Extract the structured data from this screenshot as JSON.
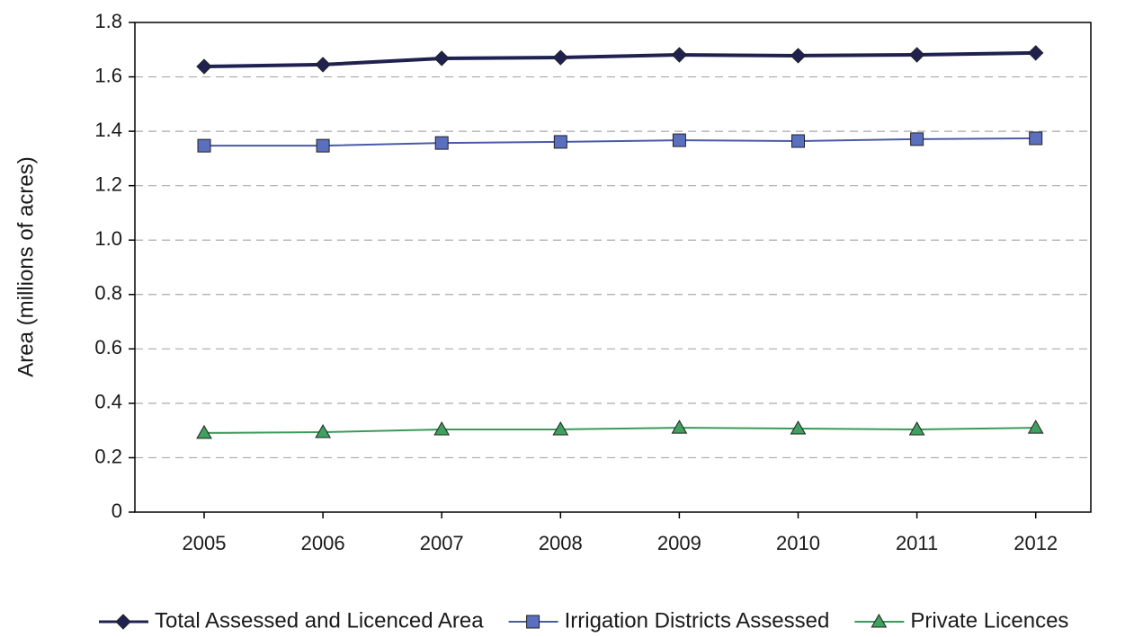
{
  "chart_data": {
    "type": "line",
    "y_label": "Area (millions of acres)",
    "categories": [
      "2005",
      "2006",
      "2007",
      "2008",
      "2009",
      "2010",
      "2011",
      "2012"
    ],
    "series": [
      {
        "name": "Total Assessed and Licenced Area",
        "color": "#1f2250",
        "marker": "diamond",
        "values": [
          1.638,
          1.645,
          1.668,
          1.671,
          1.681,
          1.678,
          1.681,
          1.688
        ]
      },
      {
        "name": "Irrigation Districts Assessed",
        "color": "#4a5aa8",
        "marker": "square",
        "values": [
          1.347,
          1.347,
          1.357,
          1.361,
          1.367,
          1.364,
          1.371,
          1.374
        ]
      },
      {
        "name": "Private Licences",
        "color": "#3a9a58",
        "marker": "triangle",
        "values": [
          0.291,
          0.294,
          0.304,
          0.304,
          0.31,
          0.307,
          0.304,
          0.31
        ]
      }
    ],
    "ylim": [
      0,
      1.8
    ],
    "yticks": [
      0,
      0.2,
      0.4,
      0.6,
      0.8,
      {
        "value": 1,
        "label": "1.0"
      },
      1.2,
      1.4,
      1.6,
      1.8
    ],
    "grid": true,
    "legend": "bottom"
  }
}
